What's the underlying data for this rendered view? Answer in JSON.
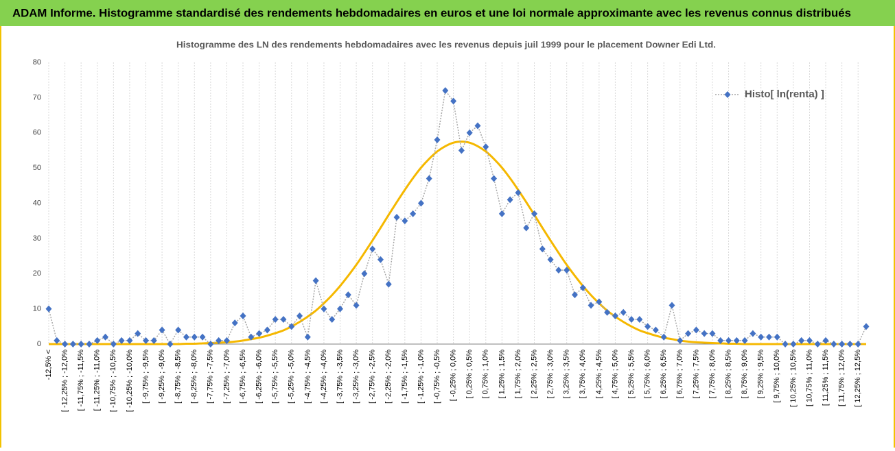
{
  "header": {
    "title": "ADAM Informe. Histogramme standardisé des rendements hebdomadaires en euros et une loi normale approximante avec les revenus connus distribués"
  },
  "chart_data": {
    "type": "line",
    "title": "Histogramme  des LN des rendements hebdomadaires avec les revenus depuis juil 1999 pour le placement Downer Edi Ltd.",
    "categories": [
      "-12,5% <",
      null,
      "[ -12,25% ; -12,0%",
      null,
      "[ -11,75% ; -11,5%",
      null,
      "[ -11,25% ; -11,0%",
      null,
      "[ -10,75% ; -10,5%",
      null,
      "[ -10,25% ; -10,0%",
      null,
      "[ -9,75% ; -9,5%",
      null,
      "[ -9,25% ; -9,0%",
      null,
      "[ -8,75% ; -8,5%",
      null,
      "[ -8,25% ; -8,0%",
      null,
      "[ -7,75% ; -7,5%",
      null,
      "[ -7,25% ; -7,0%",
      null,
      "[ -6,75% ; -6,5%",
      null,
      "[ -6,25% ; -6,0%",
      null,
      "[ -5,75% ; -5,5%",
      null,
      "[ -5,25% ; -5,0%",
      null,
      "[ -4,75% ; -4,5%",
      null,
      "[ -4,25% ; -4,0%",
      null,
      "[ -3,75% ; -3,5%",
      null,
      "[ -3,25% ; -3,0%",
      null,
      "[ -2,75% ; -2,5%",
      null,
      "[ -2,25% ; -2,0%",
      null,
      "[ -1,75% ; -1,5%",
      null,
      "[ -1,25% ; -1,0%",
      null,
      "[ -0,75% ; -0,5%",
      null,
      "[ -0,25% ; 0,0%",
      null,
      "[ 0,25% ; 0,5%",
      null,
      "[ 0,75% ; 1,0%",
      null,
      "[ 1,25% ; 1,5%",
      null,
      "[ 1,75% ; 2,0%",
      null,
      "[ 2,25% ; 2,5%",
      null,
      "[ 2,75% ; 3,0%",
      null,
      "[ 3,25% ; 3,5%",
      null,
      "[ 3,75% ; 4,0%",
      null,
      "[ 4,25% ; 4,5%",
      null,
      "[ 4,75% ; 5,0%",
      null,
      "[ 5,25% ; 5,5%",
      null,
      "[ 5,75% ; 6,0%",
      null,
      "[ 6,25% ; 6,5%",
      null,
      "[ 6,75% ; 7,0%",
      null,
      "[ 7,25% ; 7,5%",
      null,
      "[ 7,75% ; 8,0%",
      null,
      "[ 8,25% ; 8,5%",
      null,
      "[ 8,75% ; 9,0%",
      null,
      "[ 9,25% ; 9,5%",
      null,
      "[ 9,75% ; 10,0%",
      null,
      "[ 10,25% ; 10,5%",
      null,
      "[ 10,75% ; 11,0%",
      null,
      "[ 11,25% ; 11,5%",
      null,
      "[ 11,75% ; 12,0%",
      null,
      "[ 12,25% ; 12,5%",
      null
    ],
    "series": [
      {
        "name": "Histo[ ln(renta) ]",
        "color": "#4472c4",
        "line_color": "#a6a6a6",
        "line_style": "dotted",
        "marker": "diamond",
        "values": [
          10,
          1,
          0,
          0,
          0,
          0,
          1,
          2,
          0,
          1,
          1,
          3,
          1,
          1,
          4,
          0,
          4,
          2,
          2,
          2,
          0,
          1,
          1,
          6,
          8,
          2,
          3,
          4,
          7,
          7,
          5,
          8,
          2,
          18,
          10,
          7,
          10,
          14,
          11,
          20,
          27,
          24,
          17,
          36,
          35,
          37,
          40,
          47,
          58,
          72,
          69,
          55,
          60,
          62,
          56,
          47,
          37,
          41,
          43,
          33,
          37,
          27,
          24,
          21,
          21,
          14,
          16,
          11,
          12,
          9,
          8,
          9,
          7,
          7,
          5,
          4,
          2,
          11,
          1,
          3,
          4,
          3,
          3,
          1,
          1,
          1,
          1,
          3,
          2,
          2,
          2,
          0,
          0,
          1,
          1,
          0,
          1,
          0,
          0,
          0,
          0,
          5
        ]
      },
      {
        "color": "#f5b800",
        "smooth": true,
        "values": [
          0,
          0,
          0,
          0,
          0,
          0,
          0,
          0,
          0,
          0,
          0,
          0,
          0,
          0,
          0,
          0,
          0,
          0.1,
          0.1,
          0.2,
          0.3,
          0.4,
          0.5,
          0.7,
          1.0,
          1.4,
          1.8,
          2.4,
          3.1,
          3.9,
          5.0,
          6.3,
          7.8,
          9.5,
          11.6,
          13.9,
          16.5,
          19.4,
          22.5,
          25.9,
          29.4,
          33.0,
          36.7,
          40.3,
          43.8,
          47.1,
          50.1,
          52.6,
          54.7,
          56.2,
          57.2,
          57.5,
          57.2,
          56.2,
          54.7,
          52.6,
          50.1,
          47.1,
          43.8,
          40.3,
          36.7,
          33.0,
          29.4,
          25.9,
          22.5,
          19.4,
          16.5,
          13.9,
          11.6,
          9.5,
          7.8,
          6.3,
          5.0,
          3.9,
          3.1,
          2.4,
          1.8,
          1.4,
          1.0,
          0.7,
          0.5,
          0.4,
          0.3,
          0.2,
          0.1,
          0.1,
          0,
          0,
          0,
          0,
          0,
          0,
          0,
          0,
          0,
          0,
          0,
          0,
          0,
          0,
          0,
          0
        ]
      }
    ],
    "ylim": [
      0,
      80
    ],
    "yticks": [
      0,
      10,
      20,
      30,
      40,
      50,
      60,
      70,
      80
    ],
    "grid": false,
    "xgrid": true,
    "legend": "upper right"
  }
}
